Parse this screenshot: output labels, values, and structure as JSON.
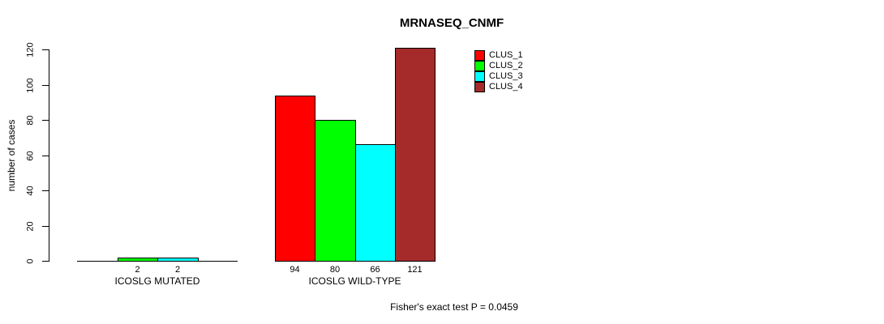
{
  "chart_data": {
    "type": "bar",
    "title": "MRNASEQ_CNMF",
    "xlabel": "",
    "ylabel": "number of cases",
    "ylim": [
      0,
      120
    ],
    "yticks": [
      0,
      20,
      40,
      60,
      80,
      100,
      120
    ],
    "grid": false,
    "legend_position": "top-right-inside",
    "categories": [
      "ICOSLG MUTATED",
      "ICOSLG WILD-TYPE"
    ],
    "series": [
      {
        "name": "CLUS_1",
        "color": "#FF0000",
        "values": [
          0,
          94
        ]
      },
      {
        "name": "CLUS_2",
        "color": "#00FF00",
        "values": [
          2,
          80
        ]
      },
      {
        "name": "CLUS_3",
        "color": "#00FFFF",
        "values": [
          2,
          66
        ]
      },
      {
        "name": "CLUS_4",
        "color": "#A52A2A",
        "values": [
          0,
          121
        ]
      }
    ],
    "visible_bar_labels": [
      "2",
      "2",
      "94",
      "80",
      "66",
      "121"
    ],
    "annotation": "Fisher's exact test P = 0.0459"
  }
}
